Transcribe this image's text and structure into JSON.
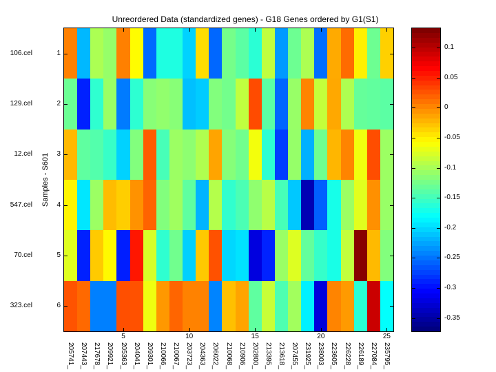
{
  "title": "Unreordered Data (standardized genes) - G18 Genes ordered by G1(S1)",
  "ylabel": "Samples - S601",
  "chart_data": {
    "type": "heatmap",
    "colormap": "jet",
    "vmin": -0.372,
    "vmax": 0.132,
    "n_rows": 6,
    "n_cols": 25,
    "row_index_labels": [
      "1",
      "2",
      "3",
      "4",
      "5",
      "6"
    ],
    "row_labels": [
      "106.cel",
      "129.cel",
      "12.cel",
      "547.cel",
      "70.cel",
      "323.cel"
    ],
    "col_labels": [
      "205741_",
      "207443_",
      "217678_",
      "209921_",
      "205363_",
      "204041_",
      "209301_",
      "210066_",
      "210067_",
      "203723_",
      "204363_",
      "206022_",
      "210068_",
      "210906_",
      "202800_",
      "213395_",
      "213618_",
      "207455_",
      "231925_",
      "238003_",
      "223605_",
      "226228_",
      "226189_",
      "227084_",
      "235795_"
    ],
    "x_ticks": [
      5,
      10,
      15,
      20,
      25
    ],
    "x_tick_labels": [
      "5",
      "10",
      "15",
      "20",
      "25"
    ],
    "values": [
      [
        0.006,
        -0.218,
        -0.098,
        -0.109,
        0.006,
        -0.056,
        -0.257,
        -0.168,
        -0.168,
        -0.205,
        -0.04,
        -0.258,
        -0.125,
        -0.138,
        -0.162,
        -0.088,
        -0.233,
        -0.129,
        -0.098,
        -0.255,
        -0.015,
        0.016,
        -0.05,
        -0.129,
        -0.034
      ],
      [
        -0.13,
        -0.293,
        -0.16,
        -0.107,
        -0.248,
        -0.161,
        -0.116,
        -0.111,
        -0.116,
        -0.214,
        -0.208,
        -0.119,
        -0.126,
        -0.088,
        0.032,
        -0.138,
        -0.259,
        -0.108,
        0.004,
        -0.086,
        -0.014,
        -0.097,
        -0.133,
        -0.135,
        -0.138
      ],
      [
        -0.022,
        -0.136,
        -0.142,
        -0.156,
        -0.205,
        -0.119,
        0.024,
        -0.148,
        -0.106,
        -0.113,
        -0.096,
        -0.012,
        -0.117,
        -0.127,
        -0.063,
        -0.161,
        -0.279,
        -0.109,
        -0.222,
        -0.128,
        -0.021,
        0.004,
        -0.064,
        0.031,
        -0.106
      ],
      [
        -0.052,
        -0.195,
        -0.106,
        -0.024,
        -0.033,
        -0.003,
        0.02,
        -0.119,
        -0.104,
        -0.136,
        -0.22,
        -0.094,
        -0.159,
        -0.146,
        -0.112,
        -0.092,
        -0.148,
        -0.21,
        -0.346,
        -0.262,
        -0.172,
        -0.106,
        -0.072,
        -0.002,
        -0.108
      ],
      [
        -0.073,
        -0.293,
        -0.031,
        -0.054,
        -0.294,
        0.058,
        -0.077,
        -0.16,
        -0.127,
        -0.206,
        -0.03,
        0.029,
        -0.203,
        -0.197,
        -0.325,
        -0.292,
        -0.107,
        -0.074,
        -0.134,
        -0.157,
        -0.171,
        -0.087,
        0.128,
        -0.023,
        -0.119
      ],
      [
        0.028,
        0.017,
        -0.246,
        -0.246,
        0.03,
        0.029,
        -0.065,
        -0.006,
        0.019,
        0.005,
        0.005,
        -0.244,
        -0.026,
        -0.012,
        -0.136,
        -0.084,
        -0.145,
        -0.103,
        -0.19,
        -0.327,
        0.004,
        -0.007,
        -0.162,
        0.095,
        -0.182
      ]
    ],
    "colorbar": {
      "levels": 64,
      "tick_labels": [
        "0.1",
        "0.05",
        "0",
        "-0.05",
        "-0.1",
        "-0.15",
        "-0.2",
        "-0.25",
        "-0.3",
        "-0.35"
      ],
      "tick_values": [
        0.1,
        0.05,
        0,
        -0.05,
        -0.1,
        -0.15,
        -0.2,
        -0.25,
        -0.3,
        -0.35
      ]
    }
  }
}
